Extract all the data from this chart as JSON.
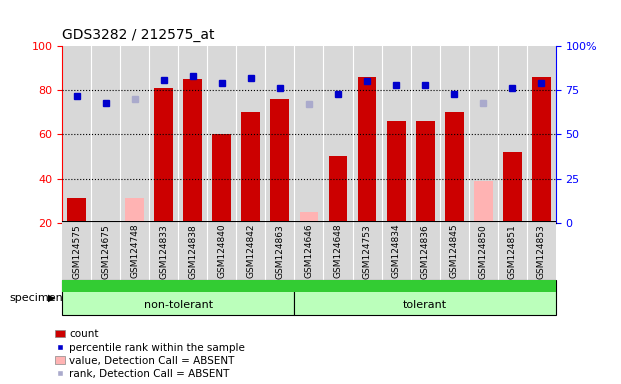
{
  "title": "GDS3282 / 212575_at",
  "samples": [
    "GSM124575",
    "GSM124675",
    "GSM124748",
    "GSM124833",
    "GSM124838",
    "GSM124840",
    "GSM124842",
    "GSM124863",
    "GSM124646",
    "GSM124648",
    "GSM124753",
    "GSM124834",
    "GSM124836",
    "GSM124845",
    "GSM124850",
    "GSM124851",
    "GSM124853"
  ],
  "group_labels": [
    "non-tolerant",
    "tolerant"
  ],
  "group_sizes": [
    8,
    9
  ],
  "bar_values": [
    31,
    20,
    null,
    81,
    85,
    60,
    70,
    76,
    null,
    50,
    86,
    66,
    66,
    70,
    null,
    52,
    86
  ],
  "absent_bar_values": [
    null,
    null,
    31,
    null,
    null,
    null,
    null,
    null,
    25,
    null,
    null,
    null,
    null,
    null,
    39,
    null,
    null
  ],
  "dot_values": [
    72,
    68,
    null,
    81,
    83,
    79,
    82,
    76,
    null,
    73,
    80,
    78,
    78,
    73,
    null,
    76,
    79
  ],
  "absent_dot_values": [
    null,
    null,
    70,
    null,
    null,
    null,
    null,
    null,
    67,
    null,
    null,
    null,
    null,
    null,
    68,
    null,
    null
  ],
  "bar_color": "#cc0000",
  "absent_bar_color": "#ffb3b3",
  "dot_color": "#0000cc",
  "absent_dot_color": "#aaaacc",
  "ylim_left": [
    20,
    100
  ],
  "ylim_right": [
    0,
    100
  ],
  "plot_bg_color": "#d8d8d8",
  "col_sep_color": "#ffffff",
  "group_light_color": "#bbffbb",
  "group_dark_color": "#33cc33",
  "legend_items": [
    {
      "label": "count",
      "color": "#cc0000",
      "type": "bar"
    },
    {
      "label": "percentile rank within the sample",
      "color": "#0000cc",
      "type": "dot"
    },
    {
      "label": "value, Detection Call = ABSENT",
      "color": "#ffb3b3",
      "type": "bar"
    },
    {
      "label": "rank, Detection Call = ABSENT",
      "color": "#aaaacc",
      "type": "dot"
    }
  ]
}
